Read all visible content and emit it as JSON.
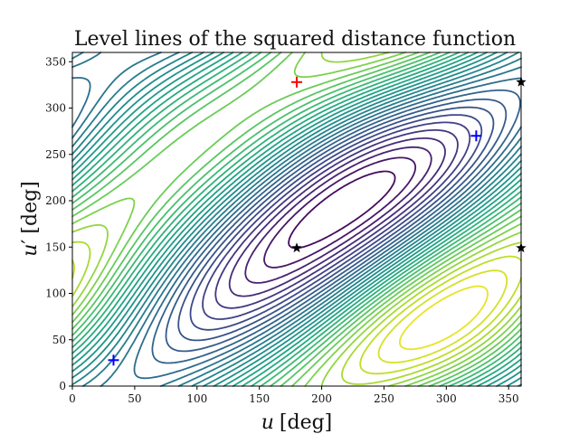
{
  "chart_data": {
    "type": "contour",
    "title": "Level lines of the squared distance function",
    "xlabel": {
      "var": "u",
      "unit": "[deg]"
    },
    "ylabel": {
      "var": "u",
      "prime": "′",
      "unit": "[deg]"
    },
    "xlim": [
      0,
      360
    ],
    "ylim": [
      0,
      360
    ],
    "xticks": [
      0,
      50,
      100,
      150,
      200,
      250,
      300,
      350
    ],
    "yticks": [
      0,
      50,
      100,
      150,
      200,
      250,
      300,
      350
    ],
    "grid": false,
    "colormap": "viridis",
    "contour_levels": 30,
    "maxima_markers": {
      "marker": "plus",
      "color": "#ff0000",
      "points": [
        [
          180,
          328
        ]
      ]
    },
    "minima_markers": {
      "marker": "plus",
      "color": "#0000ff",
      "points": [
        [
          33,
          28
        ],
        [
          324,
          270
        ]
      ]
    },
    "saddle_markers": {
      "marker": "star",
      "color": "#000000",
      "points": [
        [
          180,
          149
        ],
        [
          360,
          149
        ],
        [
          360,
          328
        ]
      ]
    }
  }
}
